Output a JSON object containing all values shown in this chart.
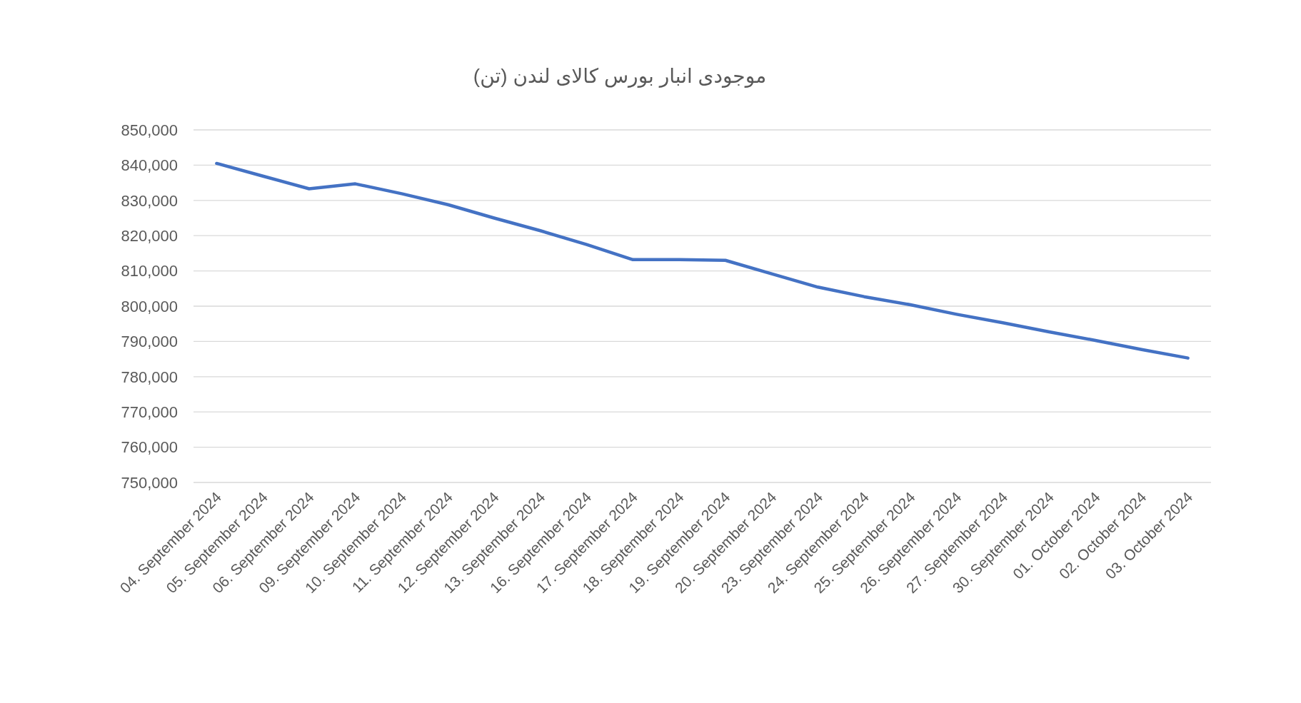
{
  "chart_data": {
    "type": "line",
    "title": "موجودی انبار بورس کالای لندن (تن)",
    "categories": [
      "04. September 2024",
      "05. September 2024",
      "06. September 2024",
      "09. September 2024",
      "10. September 2024",
      "11. September 2024",
      "12. September 2024",
      "13. September 2024",
      "16. September 2024",
      "17. September 2024",
      "18. September 2024",
      "19. September 2024",
      "20. September 2024",
      "23. September 2024",
      "24. September 2024",
      "25. September 2024",
      "26. September 2024",
      "27. September 2024",
      "30. September 2024",
      "01. October 2024",
      "02. October 2024",
      "03. October 2024"
    ],
    "series": [
      {
        "color": "#4472c4",
        "values": [
          840500,
          836900,
          833300,
          834700,
          831900,
          828800,
          825000,
          821400,
          817500,
          813200,
          813200,
          813000,
          809200,
          805400,
          802700,
          800400,
          797700,
          795300,
          792700,
          790300,
          787700,
          785300
        ]
      }
    ],
    "ylim": [
      750000,
      850000
    ],
    "yticks": [
      {
        "value": 750000,
        "label": "750,000"
      },
      {
        "value": 760000,
        "label": "760,000"
      },
      {
        "value": 770000,
        "label": "770,000"
      },
      {
        "value": 780000,
        "label": "780,000"
      },
      {
        "value": 790000,
        "label": "790,000"
      },
      {
        "value": 800000,
        "label": "800,000"
      },
      {
        "value": 810000,
        "label": "810,000"
      },
      {
        "value": 820000,
        "label": "820,000"
      },
      {
        "value": 830000,
        "label": "830,000"
      },
      {
        "value": 840000,
        "label": "840,000"
      },
      {
        "value": 850000,
        "label": "850,000"
      }
    ],
    "grid": "y",
    "line_style": "solid"
  }
}
